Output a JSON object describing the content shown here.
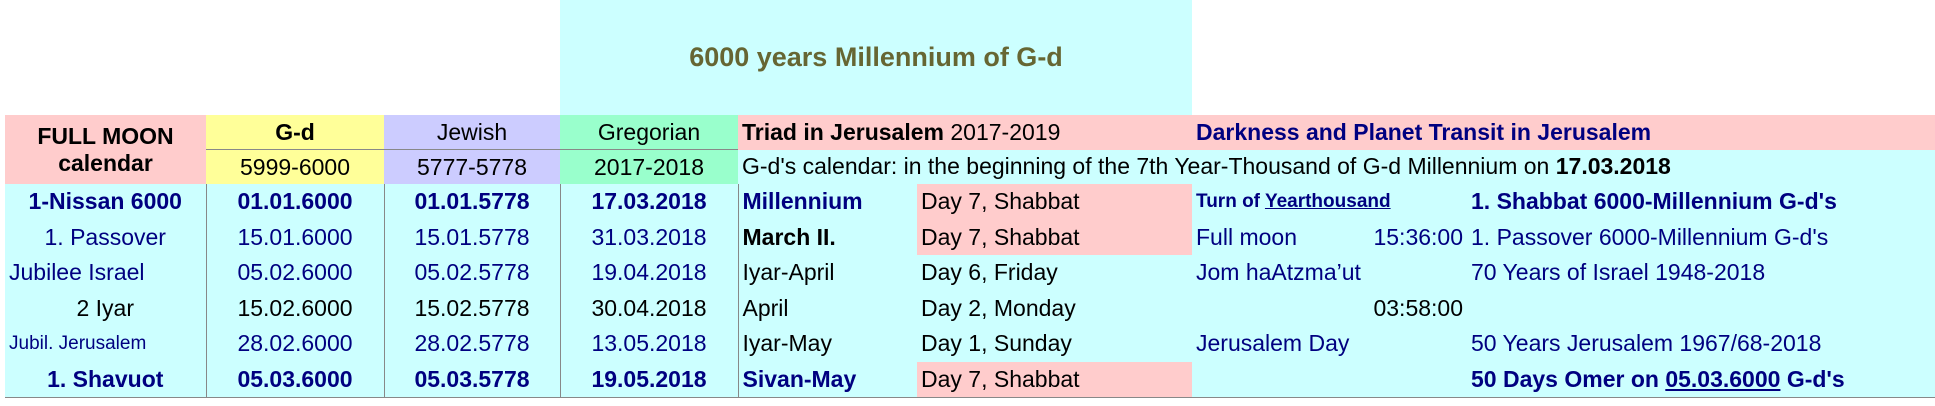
{
  "title": "6000 years Millennium of G-d",
  "header": {
    "full_moon": "FULL MOON",
    "calendar": "calendar",
    "gd": "G-d",
    "gd_range": "5999-6000",
    "jewish": "Jewish",
    "jewish_range": "5777-5778",
    "gregorian": "Gregorian",
    "gregorian_range": "2017-2018",
    "triad_bold": "Triad in Jerusalem",
    "triad_years": "2017-2019",
    "darkness": "Darkness and Planet Transit in Jerusalem",
    "gd_calendar_text": "G-d's calendar: in the beginning of the 7th Year-Thousand of G-d Millennium on",
    "gd_calendar_date": "17.03.2018"
  },
  "rows": [
    {
      "name": "1-Nissan 6000",
      "gd": "01.01.6000",
      "jewish": "01.01.5778",
      "greg": "17.03.2018",
      "month": "Millennium",
      "day": "Day 7, Shabbat",
      "ev1": "Turn of",
      "ev1_link": "Yearthousand",
      "ev2": "",
      "note": "1. Shabbat 6000-Millennium G-d's"
    },
    {
      "name": "1. Passover",
      "gd": "15.01.6000",
      "jewish": "15.01.5778",
      "greg": "31.03.2018",
      "month": "March II.",
      "day": "Day 7, Shabbat",
      "ev1": "Full moon",
      "ev2": "15:36:00",
      "note": "1. Passover 6000-Millennium G-d's"
    },
    {
      "name": "Jubilee Israel",
      "gd": "05.02.6000",
      "jewish": "05.02.5778",
      "greg": "19.04.2018",
      "month": "Iyar-April",
      "day": "Day 6, Friday",
      "ev1": "Jom haAtzma’ut",
      "ev2": "",
      "note": "70 Years of Israel 1948-2018"
    },
    {
      "name": "2 Iyar",
      "gd": "15.02.6000",
      "jewish": "15.02.5778",
      "greg": "30.04.2018",
      "month": "April",
      "day": "Day 2, Monday",
      "ev1": "",
      "ev2": "03:58:00",
      "note": ""
    },
    {
      "name": "Jubil. Jerusalem",
      "gd": "28.02.6000",
      "jewish": "28.02.5778",
      "greg": "13.05.2018",
      "month": "Iyar-May",
      "day": "Day 1, Sunday",
      "ev1": "Jerusalem Day",
      "ev2": "",
      "note": "50 Years Jerusalem 1967/68-2018"
    },
    {
      "name": "1. Shavuot",
      "gd": "05.03.6000",
      "jewish": "05.03.5778",
      "greg": "19.05.2018",
      "month": "Sivan-May",
      "day": "Day 7, Shabbat",
      "ev1": "",
      "ev2": "",
      "note_pre": "50 Days Omer on",
      "note_link": "05.03.6000",
      "note_post": "G-d's"
    }
  ]
}
